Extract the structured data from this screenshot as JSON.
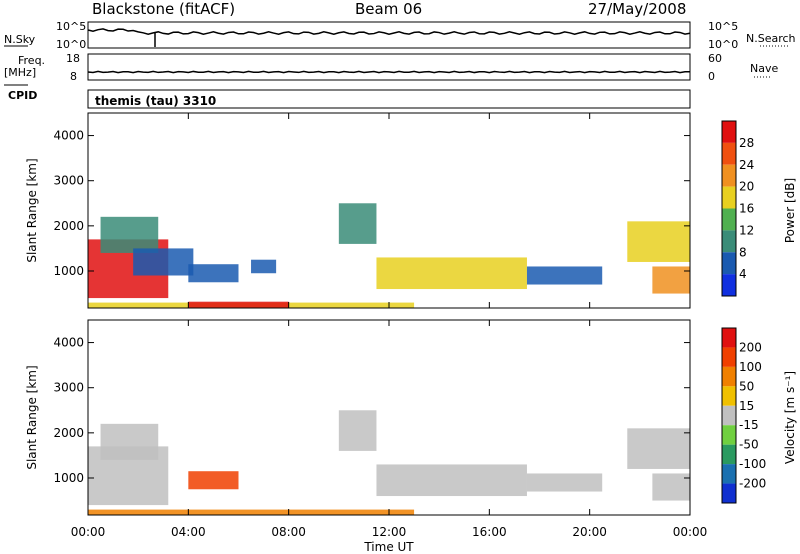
{
  "header": {
    "station": "Blackstone (fitACF)",
    "beam": "Beam 06",
    "date": "27/May/2008"
  },
  "strip_labels": {
    "nsky": "N.Sky",
    "nsky_hi": "10^5",
    "nsky_lo": "10^0",
    "nsearch": "N.Search",
    "nsearch_hi": "10^5",
    "nsearch_lo": "10^0",
    "freq_line1": "Freq.",
    "freq_line2": "[MHz]",
    "freq_hi": "18",
    "freq_lo": "8",
    "nave": "Nave",
    "nave_hi": "60",
    "nave_lo": "0",
    "cpid": "CPID",
    "cpid_value": "themis (tau) 3310"
  },
  "chart_data": [
    {
      "type": "heatmap",
      "name": "power",
      "ylabel": "Slant Range [km]",
      "ylim": [
        180,
        4500
      ],
      "yticks": [
        "1000",
        "2000",
        "3000",
        "4000"
      ],
      "colorbar_label": "Power [dB]",
      "colorbar_ticks": [
        "4",
        "8",
        "12",
        "16",
        "20",
        "24",
        "28"
      ],
      "colors": [
        "#1030e0",
        "#1a5ab0",
        "#3a8c78",
        "#50b050",
        "#e8d020",
        "#f09020",
        "#f05010",
        "#e01010"
      ],
      "bands": [
        {
          "t0": 0.0,
          "t1": 3.2,
          "r0": 400,
          "r1": 1700,
          "level": 7
        },
        {
          "t0": 0.5,
          "t1": 2.8,
          "r0": 1400,
          "r1": 2200,
          "level": 2
        },
        {
          "t0": 1.8,
          "t1": 4.2,
          "r0": 900,
          "r1": 1500,
          "level": 1
        },
        {
          "t0": 4.0,
          "t1": 6.0,
          "r0": 750,
          "r1": 1150,
          "level": 1
        },
        {
          "t0": 6.5,
          "t1": 7.5,
          "r0": 950,
          "r1": 1250,
          "level": 1
        },
        {
          "t0": 0.0,
          "t1": 13.0,
          "r0": 180,
          "r1": 300,
          "level": 4
        },
        {
          "t0": 4.0,
          "t1": 8.0,
          "r0": 180,
          "r1": 320,
          "level": 7
        },
        {
          "t0": 10.0,
          "t1": 11.5,
          "r0": 1600,
          "r1": 2500,
          "level": 2
        },
        {
          "t0": 11.5,
          "t1": 17.5,
          "r0": 600,
          "r1": 1300,
          "level": 4
        },
        {
          "t0": 17.5,
          "t1": 20.5,
          "r0": 700,
          "r1": 1100,
          "level": 1
        },
        {
          "t0": 21.5,
          "t1": 24.0,
          "r0": 1200,
          "r1": 2100,
          "level": 4
        },
        {
          "t0": 22.5,
          "t1": 24.0,
          "r0": 500,
          "r1": 1100,
          "level": 5
        }
      ]
    },
    {
      "type": "heatmap",
      "name": "velocity",
      "ylabel": "Slant Range [km]",
      "ylim": [
        180,
        4500
      ],
      "yticks": [
        "1000",
        "2000",
        "3000",
        "4000"
      ],
      "colorbar_label": "Velocity [m s⁻¹]",
      "colorbar_ticks": [
        "200",
        "100",
        "50",
        "15",
        "-15",
        "-50",
        "-100",
        "-200"
      ],
      "colors": [
        "#1030d0",
        "#1a70b0",
        "#2a9a60",
        "#70d040",
        "#c0c0c0",
        "#f0c000",
        "#f08000",
        "#f04000",
        "#e01010"
      ],
      "bands": [
        {
          "t0": 0.0,
          "t1": 3.2,
          "r0": 400,
          "r1": 1700,
          "level": 4
        },
        {
          "t0": 0.5,
          "t1": 2.8,
          "r0": 1400,
          "r1": 2200,
          "level": 4
        },
        {
          "t0": 4.0,
          "t1": 6.0,
          "r0": 750,
          "r1": 1150,
          "level": 7
        },
        {
          "t0": 0.0,
          "t1": 13.0,
          "r0": 180,
          "r1": 300,
          "level": 6
        },
        {
          "t0": 10.0,
          "t1": 11.5,
          "r0": 1600,
          "r1": 2500,
          "level": 4
        },
        {
          "t0": 11.5,
          "t1": 17.5,
          "r0": 600,
          "r1": 1300,
          "level": 4
        },
        {
          "t0": 17.5,
          "t1": 20.5,
          "r0": 700,
          "r1": 1100,
          "level": 4
        },
        {
          "t0": 21.5,
          "t1": 24.0,
          "r0": 1200,
          "r1": 2100,
          "level": 4
        },
        {
          "t0": 22.5,
          "t1": 24.0,
          "r0": 500,
          "r1": 1100,
          "level": 4
        }
      ]
    }
  ],
  "x_axis": {
    "xlim": [
      0,
      24
    ],
    "ticks": [
      "00:00",
      "04:00",
      "08:00",
      "12:00",
      "16:00",
      "20:00",
      "00:00"
    ],
    "label": "Time UT"
  }
}
